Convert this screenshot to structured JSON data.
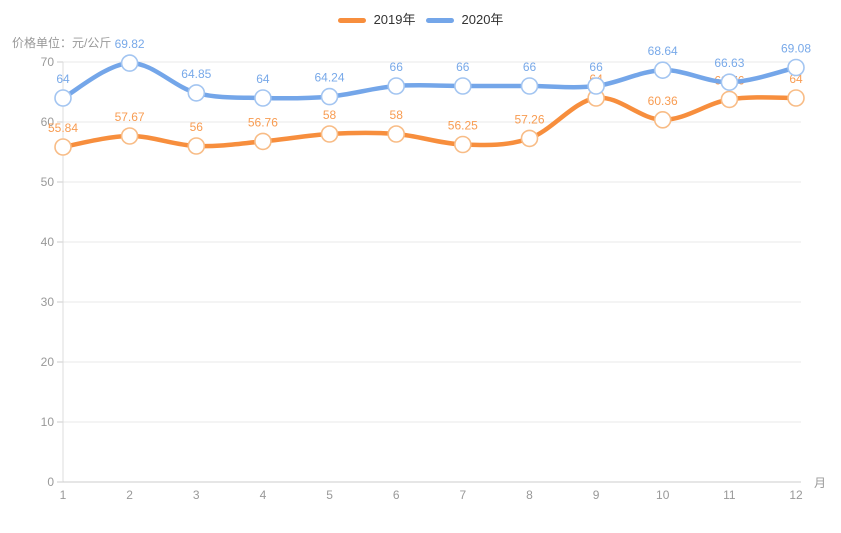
{
  "chart_data": {
    "type": "line",
    "title": "",
    "ylabel": "价格单位：元/公斤",
    "xlabel": "月",
    "categories": [
      1,
      2,
      3,
      4,
      5,
      6,
      7,
      8,
      9,
      10,
      11,
      12
    ],
    "ylim": [
      0,
      70
    ],
    "ytick_step": 10,
    "grid": true,
    "smooth": true,
    "legend_position": "top-center",
    "axis_text_color": "#999999",
    "grid_color": "#e9e9e9",
    "axis_line_color": "#cccccc",
    "y_axis_line_color": "#dddddd",
    "series": [
      {
        "name": "2019年",
        "year": "2019",
        "color": "#f78e3d",
        "marker_stroke": "#f8bc86",
        "label_color": "#f89c52",
        "values": [
          55.84,
          57.67,
          56,
          56.76,
          58,
          58,
          56.25,
          57.26,
          64,
          60.36,
          63.76,
          64
        ]
      },
      {
        "name": "2020年",
        "year": "2020",
        "color": "#74a6e9",
        "marker_stroke": "#a3c5f1",
        "label_color": "#78a9e9",
        "values": [
          64,
          69.82,
          64.85,
          64,
          64.24,
          66,
          66,
          66,
          66,
          68.64,
          66.63,
          69.08
        ]
      }
    ]
  }
}
